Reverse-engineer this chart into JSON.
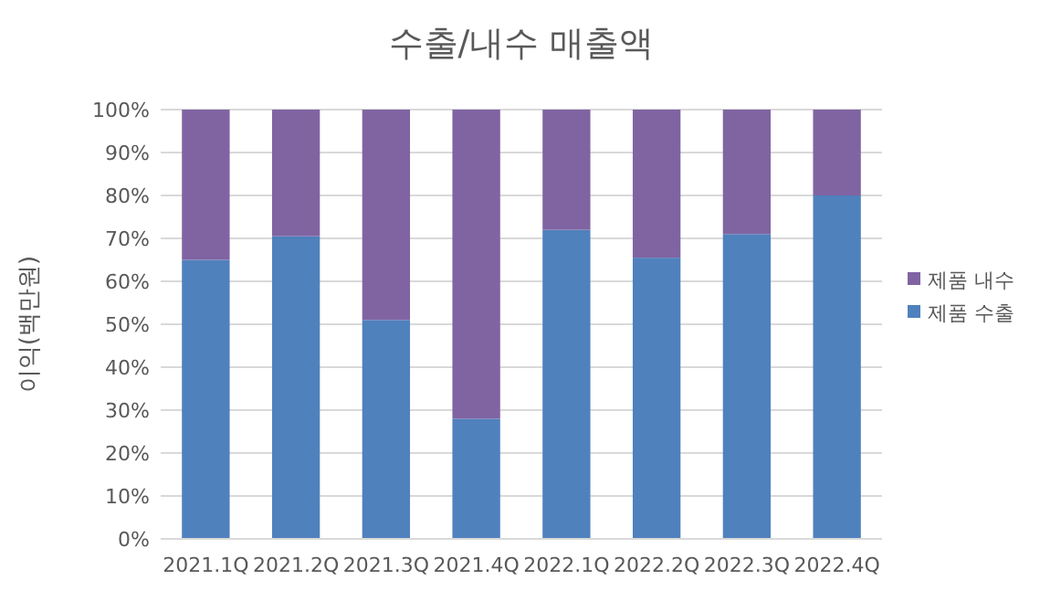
{
  "chart_data": {
    "type": "bar",
    "stacked": true,
    "title": "수출/내수 매출액",
    "ylabel": "이익(백만원)",
    "categories": [
      "2021.1Q",
      "2021.2Q",
      "2021.3Q",
      "2021.4Q",
      "2022.1Q",
      "2022.2Q",
      "2022.3Q",
      "2022.4Q"
    ],
    "series": [
      {
        "name": "제품 수출",
        "color": "#4f81bd",
        "values": [
          65,
          70.5,
          51,
          28,
          72,
          65.5,
          71,
          80
        ]
      },
      {
        "name": "제품 내수",
        "color": "#8064a2",
        "values": [
          35,
          29.5,
          49,
          72,
          28,
          34.5,
          29,
          20
        ]
      }
    ],
    "ylim": [
      0,
      100
    ],
    "yticks": [
      {
        "value": 0,
        "label": "0%"
      },
      {
        "value": 10,
        "label": "10%"
      },
      {
        "value": 20,
        "label": "20%"
      },
      {
        "value": 30,
        "label": "30%"
      },
      {
        "value": 40,
        "label": "40%"
      },
      {
        "value": 50,
        "label": "50%"
      },
      {
        "value": 60,
        "label": "60%"
      },
      {
        "value": 70,
        "label": "70%"
      },
      {
        "value": 80,
        "label": "80%"
      },
      {
        "value": 90,
        "label": "90%"
      },
      {
        "value": 100,
        "label": "100%"
      }
    ],
    "grid": "y",
    "legend": "right"
  }
}
